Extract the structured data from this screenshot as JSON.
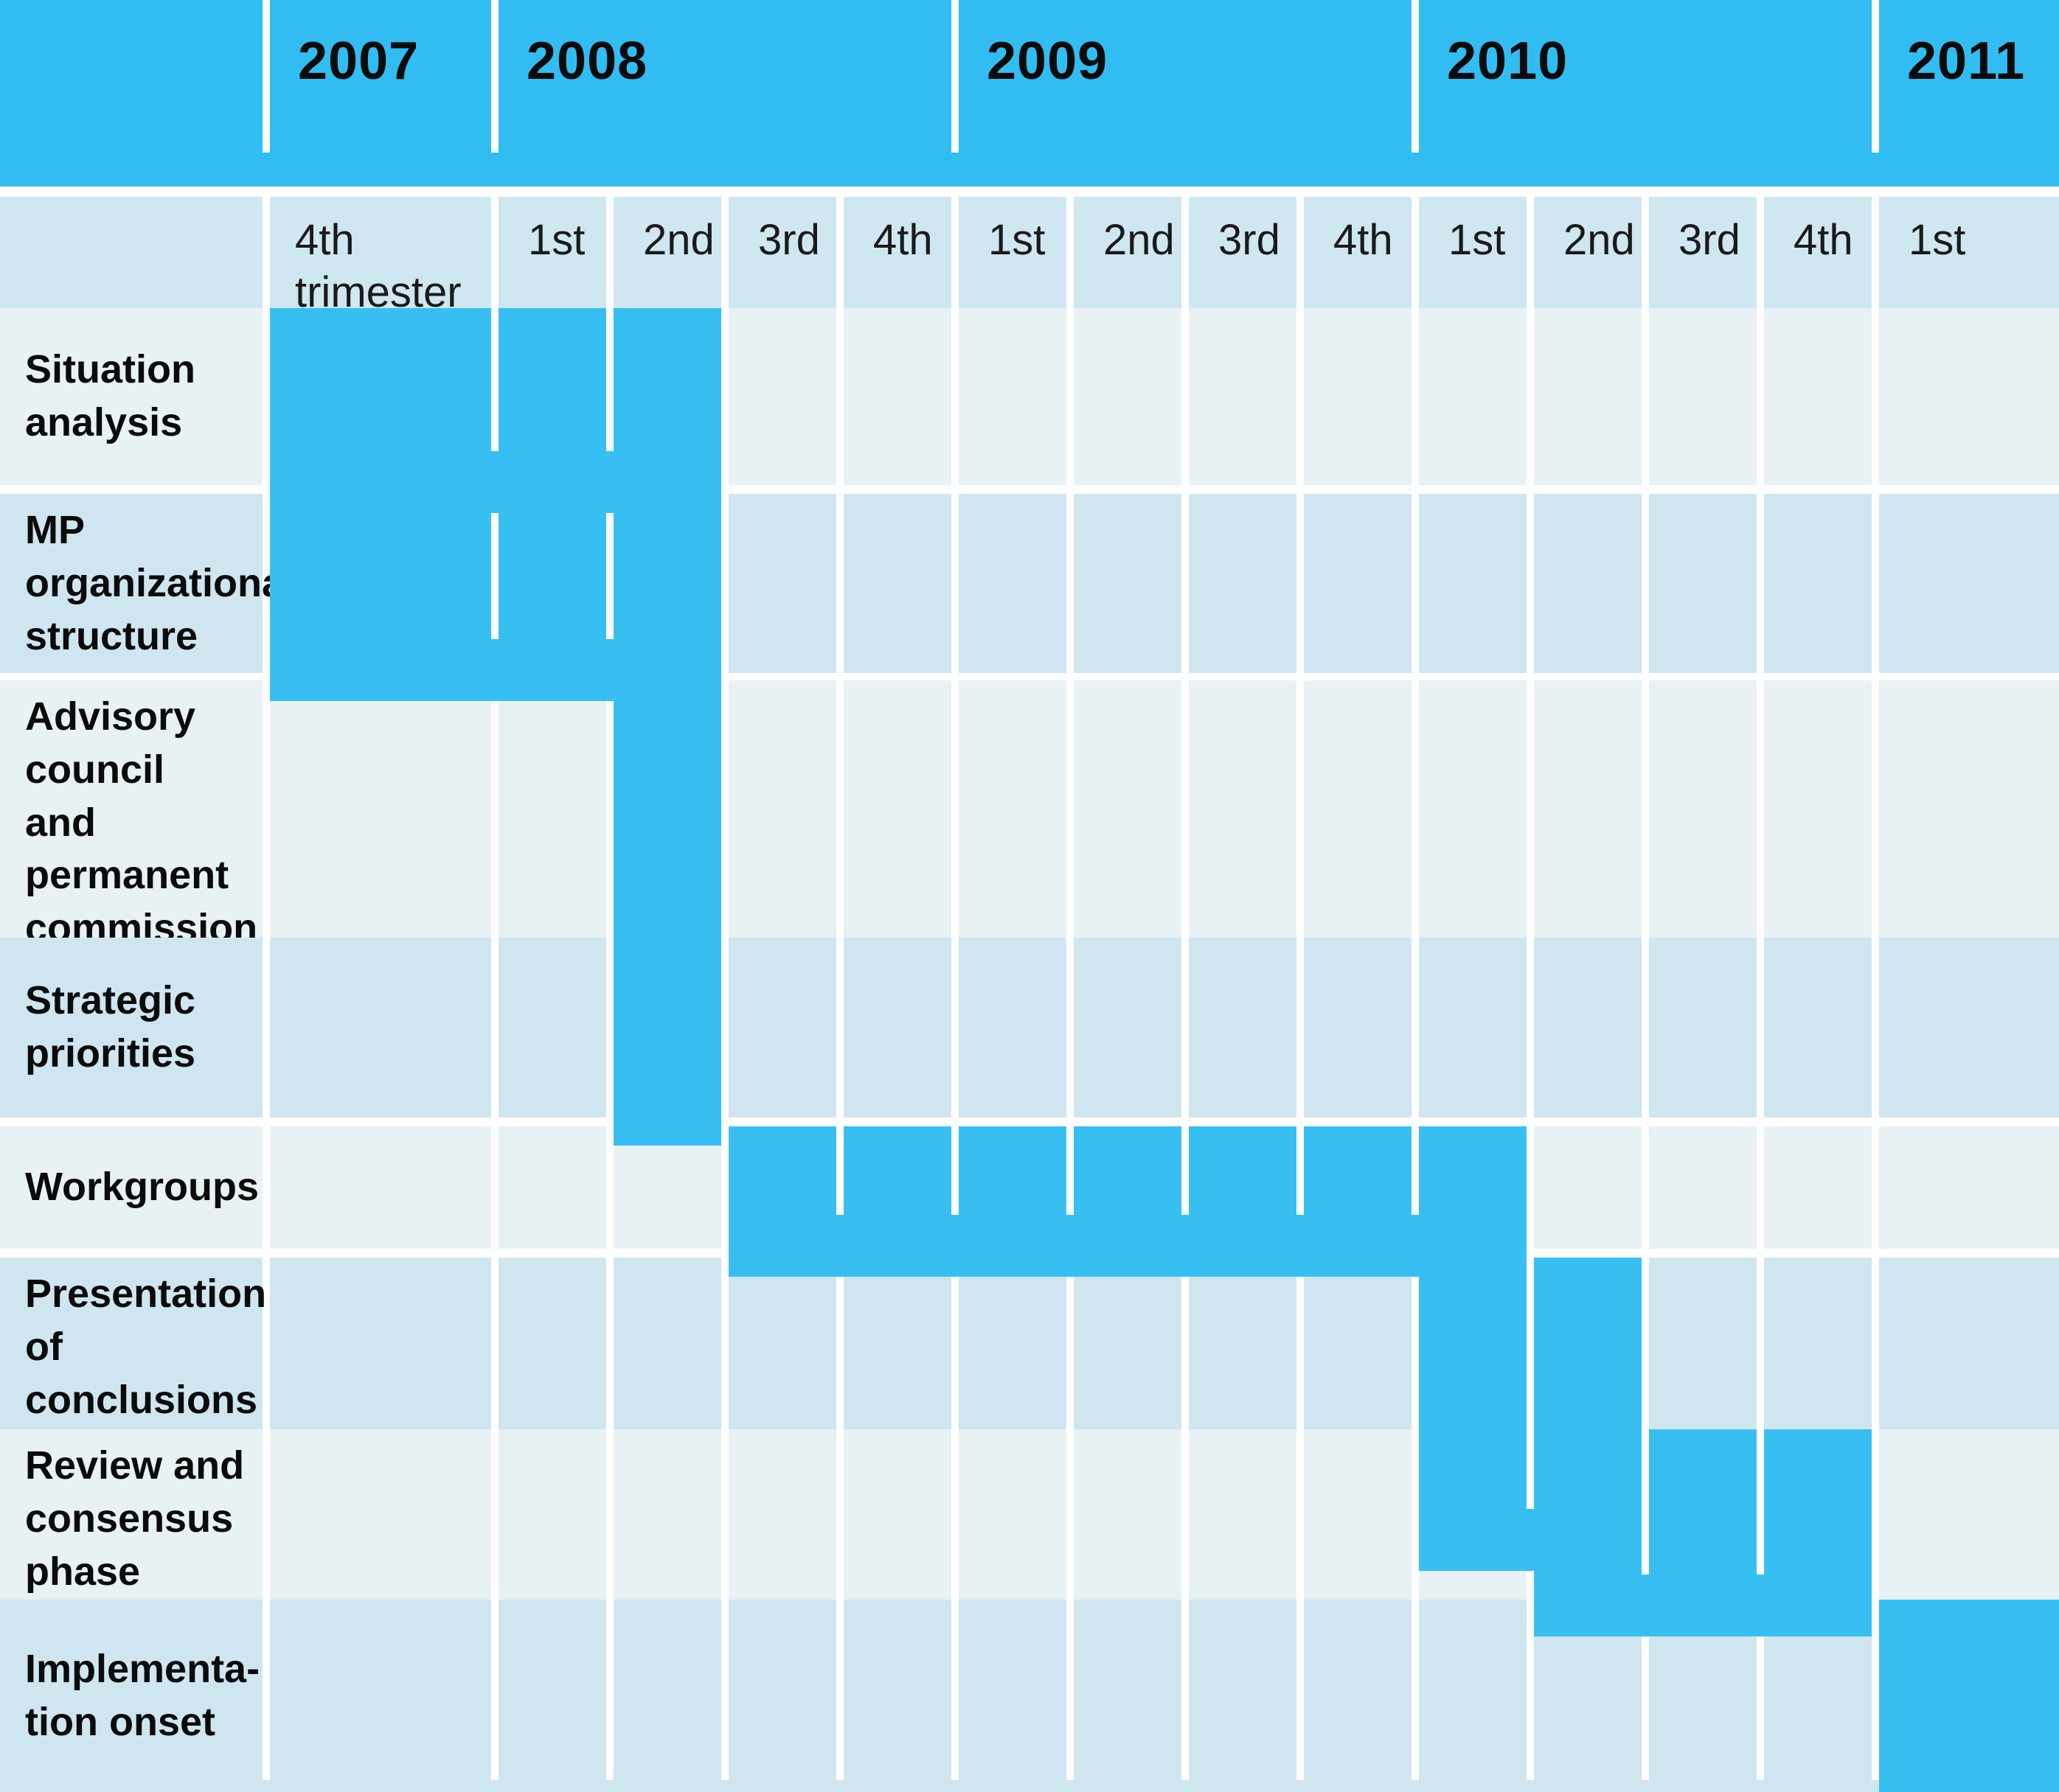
{
  "palette": {
    "bar_blue": "#38bff2",
    "year_band_blue": "#31bdf1",
    "row_light_bg": "#e8f1f3",
    "row_dark_bg": "#cfe6f0",
    "header_row_bg": "#cfe7f1",
    "divider_white": "#ffffff",
    "text_dark": "#0b0b0b"
  },
  "header": {
    "years": [
      {
        "label": "2007",
        "trimester_span": 1
      },
      {
        "label": "2008",
        "trimester_span": 4
      },
      {
        "label": "2009",
        "trimester_span": 4
      },
      {
        "label": "2010",
        "trimester_span": 4
      },
      {
        "label": "2011",
        "trimester_span": 1
      }
    ]
  },
  "trimester_row": [
    "4th\ntrimester",
    "1st",
    "2nd",
    "3rd",
    "4th",
    "1st",
    "2nd",
    "3rd",
    "4th",
    "1st",
    "2nd",
    "3rd",
    "4th",
    "1st"
  ],
  "rows": [
    {
      "label": "Situation\nanalysis",
      "filled_columns": [
        1,
        2,
        3
      ]
    },
    {
      "label": "MP\norganizational\nstructure",
      "filled_columns": [
        1,
        2,
        3
      ]
    },
    {
      "label": "Advisory\ncouncil and\npermanent\ncommission\nformation",
      "filled_columns": [
        3
      ]
    },
    {
      "label": "Strategic\npriorities",
      "filled_columns": [
        3
      ]
    },
    {
      "label": "Workgroups",
      "filled_columns": [
        4,
        5,
        6,
        7,
        8,
        9,
        10
      ]
    },
    {
      "label": "Presentation\nof conclusions\nand proposals",
      "filled_columns": [
        10,
        11
      ]
    },
    {
      "label": "Review and\nconsensus\nphase",
      "filled_columns": [
        11,
        12,
        13
      ]
    },
    {
      "label": "Implementa-\ntion onset",
      "filled_columns": [
        14
      ]
    }
  ],
  "chart_data": {
    "type": "table",
    "subtype": "gantt-timeline",
    "time_axis": {
      "unit": "trimester",
      "columns": [
        {
          "year": "2007",
          "trimester": "4th"
        },
        {
          "year": "2008",
          "trimester": "1st"
        },
        {
          "year": "2008",
          "trimester": "2nd"
        },
        {
          "year": "2008",
          "trimester": "3rd"
        },
        {
          "year": "2008",
          "trimester": "4th"
        },
        {
          "year": "2009",
          "trimester": "1st"
        },
        {
          "year": "2009",
          "trimester": "2nd"
        },
        {
          "year": "2009",
          "trimester": "3rd"
        },
        {
          "year": "2009",
          "trimester": "4th"
        },
        {
          "year": "2010",
          "trimester": "1st"
        },
        {
          "year": "2010",
          "trimester": "2nd"
        },
        {
          "year": "2010",
          "trimester": "3rd"
        },
        {
          "year": "2010",
          "trimester": "4th"
        },
        {
          "year": "2011",
          "trimester": "1st"
        }
      ]
    },
    "tasks": [
      {
        "name": "Situation analysis",
        "start": "2007 4th trimester",
        "end": "2008 2nd trimester"
      },
      {
        "name": "MP organizational structure",
        "start": "2007 4th trimester",
        "end": "2008 2nd trimester"
      },
      {
        "name": "Advisory council and permanent commission formation",
        "start": "2008 2nd trimester",
        "end": "2008 2nd trimester"
      },
      {
        "name": "Strategic priorities",
        "start": "2008 2nd trimester",
        "end": "2008 2nd trimester"
      },
      {
        "name": "Workgroups",
        "start": "2008 3rd trimester",
        "end": "2010 1st trimester"
      },
      {
        "name": "Presentation of conclusions and proposals",
        "start": "2010 1st trimester",
        "end": "2010 2nd trimester"
      },
      {
        "name": "Review and consensus phase",
        "start": "2010 2nd trimester",
        "end": "2010 4th trimester"
      },
      {
        "name": "Implementation onset",
        "start": "2011 1st trimester",
        "end": "2011 1st trimester"
      }
    ],
    "legend_position": "none",
    "grid": true
  }
}
